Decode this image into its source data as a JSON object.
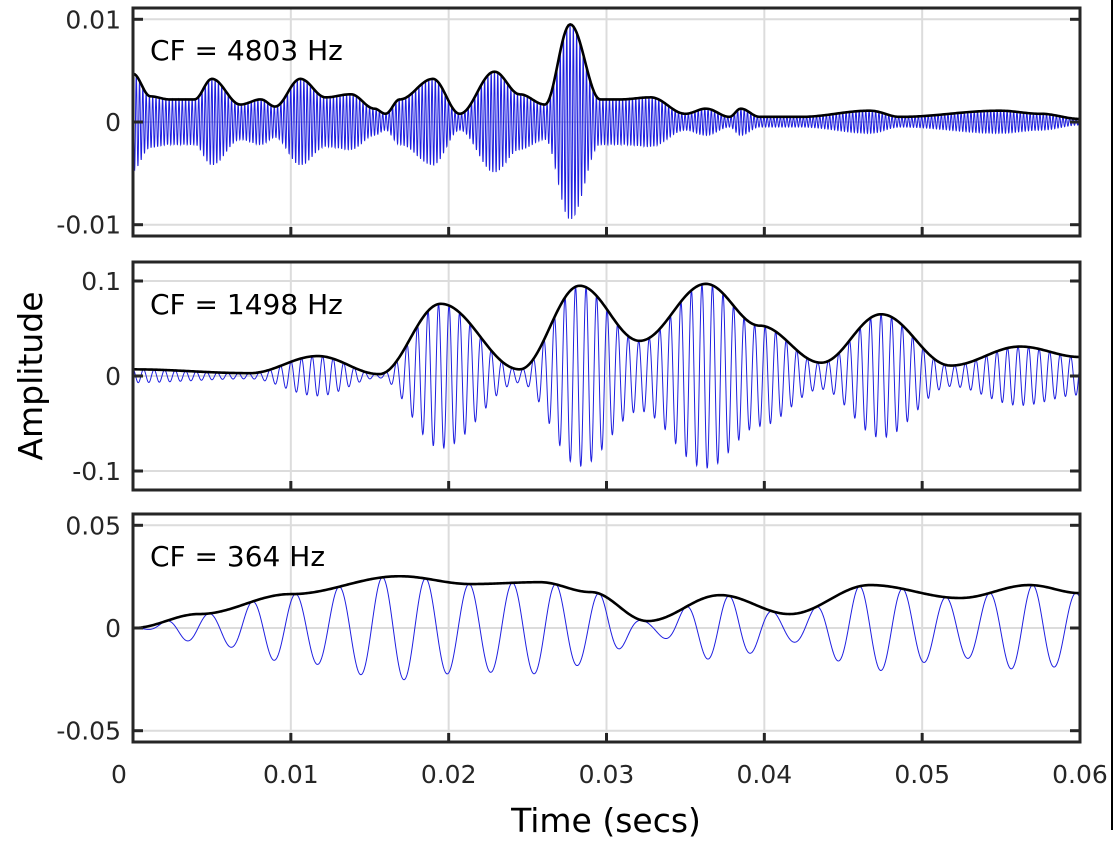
{
  "chart_data": {
    "type": "line",
    "xlabel": "Time (secs)",
    "ylabel": "Amplitude",
    "xlim": [
      0,
      0.06
    ],
    "xticks": [
      0,
      0.01,
      0.02,
      0.03,
      0.04,
      0.05,
      0.06
    ],
    "xtick_labels": [
      "0",
      "0.01",
      "0.02",
      "0.03",
      "0.04",
      "0.05",
      "0.06"
    ],
    "grid": true,
    "colors": {
      "signal": "#1f1fe0",
      "envelope": "#000000",
      "axis": "#262626",
      "grid": "#dcdcdc"
    },
    "panels": [
      {
        "label": "CF = 4803 Hz",
        "cf_hz": 4803,
        "ylim": [
          -0.0111,
          0.0111
        ],
        "yticks": [
          0.01,
          0,
          -0.01
        ],
        "ytick_labels": [
          "0.01",
          "0",
          "-0.01"
        ],
        "envelope": [
          [
            0,
            0.0047
          ],
          [
            0.0011,
            0.0025
          ],
          [
            0.0023,
            0.0022
          ],
          [
            0.0039,
            0.0022
          ],
          [
            0.005,
            0.0042
          ],
          [
            0.0068,
            0.0017
          ],
          [
            0.0081,
            0.0022
          ],
          [
            0.009,
            0.0015
          ],
          [
            0.0106,
            0.0042
          ],
          [
            0.0122,
            0.0024
          ],
          [
            0.0138,
            0.0027
          ],
          [
            0.0153,
            0.0013
          ],
          [
            0.016,
            0.0008
          ],
          [
            0.0169,
            0.0022
          ],
          [
            0.019,
            0.0042
          ],
          [
            0.0207,
            0.0008
          ],
          [
            0.0229,
            0.0049
          ],
          [
            0.0245,
            0.0027
          ],
          [
            0.0261,
            0.0017
          ],
          [
            0.0277,
            0.0095
          ],
          [
            0.0296,
            0.0022
          ],
          [
            0.0309,
            0.0022
          ],
          [
            0.0328,
            0.0024
          ],
          [
            0.035,
            0.0008
          ],
          [
            0.0363,
            0.0013
          ],
          [
            0.0378,
            0.0005
          ],
          [
            0.0385,
            0.0013
          ],
          [
            0.0397,
            0.0005
          ],
          [
            0.0423,
            0.0005
          ],
          [
            0.0467,
            0.0011
          ],
          [
            0.0486,
            0.0005
          ],
          [
            0.0549,
            0.0011
          ],
          [
            0.0575,
            0.0008
          ],
          [
            0.06,
            0.0003
          ]
        ]
      },
      {
        "label": "CF = 1498 Hz",
        "cf_hz": 1498,
        "ylim": [
          -0.12,
          0.12
        ],
        "yticks": [
          0.1,
          0,
          -0.1
        ],
        "ytick_labels": [
          "0.1",
          "0",
          "-0.1"
        ],
        "envelope": [
          [
            0,
            0.007
          ],
          [
            0.0074,
            0.003
          ],
          [
            0.0117,
            0.021
          ],
          [
            0.0156,
            0.002
          ],
          [
            0.0195,
            0.076
          ],
          [
            0.0245,
            0.007
          ],
          [
            0.0283,
            0.095
          ],
          [
            0.0321,
            0.037
          ],
          [
            0.0363,
            0.097
          ],
          [
            0.0397,
            0.053
          ],
          [
            0.0436,
            0.014
          ],
          [
            0.0474,
            0.065
          ],
          [
            0.0518,
            0.011
          ],
          [
            0.0562,
            0.031
          ],
          [
            0.06,
            0.02
          ]
        ]
      },
      {
        "label": "CF = 364 Hz",
        "cf_hz": 364,
        "ylim": [
          -0.0555,
          0.0555
        ],
        "yticks": [
          0.05,
          0,
          -0.05
        ],
        "ytick_labels": [
          "0.05",
          "0",
          "-0.05"
        ],
        "envelope": [
          [
            0,
            0
          ],
          [
            0.0042,
            0.0068
          ],
          [
            0.01,
            0.0165
          ],
          [
            0.0169,
            0.0252
          ],
          [
            0.0214,
            0.0214
          ],
          [
            0.0258,
            0.0223
          ],
          [
            0.029,
            0.0175
          ],
          [
            0.0326,
            0.0034
          ],
          [
            0.0372,
            0.016
          ],
          [
            0.0416,
            0.0068
          ],
          [
            0.0467,
            0.0209
          ],
          [
            0.0524,
            0.0146
          ],
          [
            0.0568,
            0.0209
          ],
          [
            0.06,
            0.017
          ]
        ]
      }
    ]
  }
}
